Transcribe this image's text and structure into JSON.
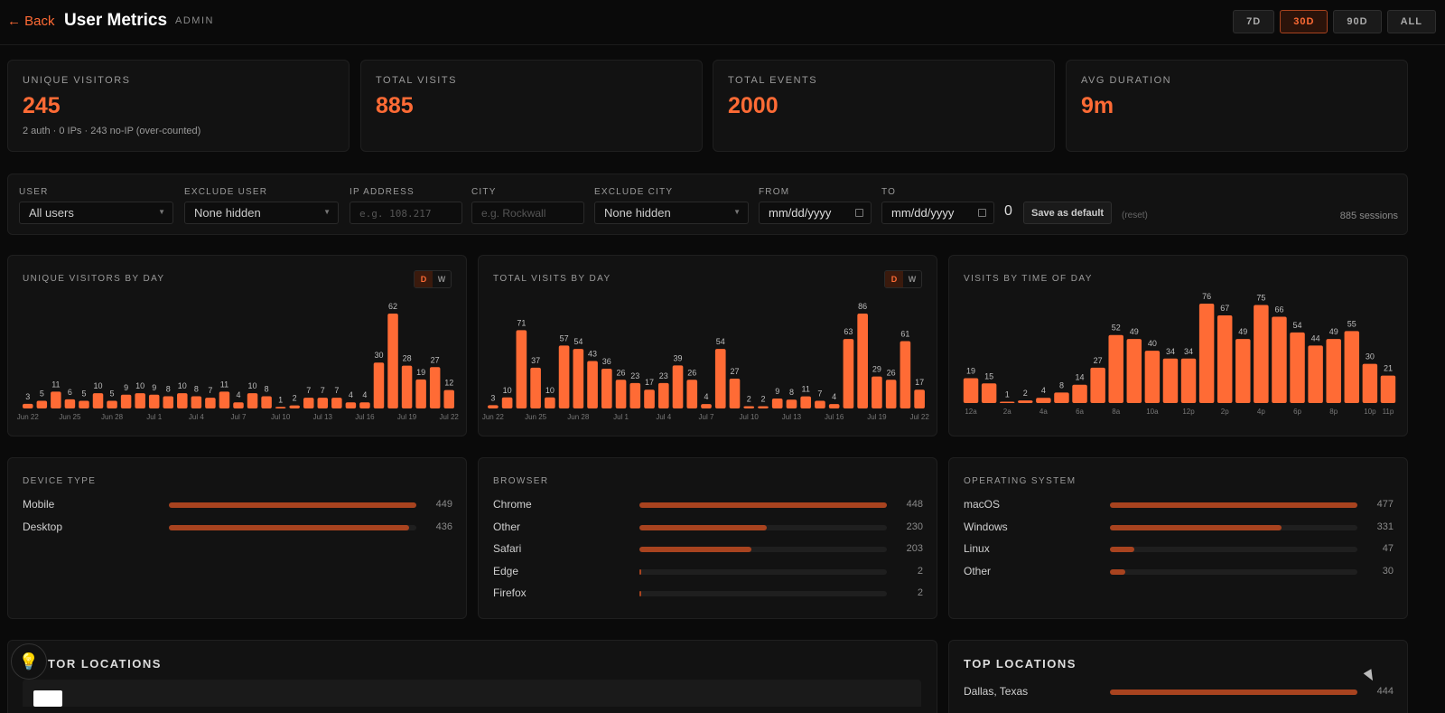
{
  "header": {
    "back_label": "← Back",
    "title": "User Metrics",
    "role": "ADMIN",
    "ranges": [
      "7D",
      "30D",
      "90D",
      "ALL"
    ],
    "active_range": "30D"
  },
  "kpis": [
    {
      "label": "UNIQUE VISITORS",
      "value": "245",
      "sub": "2 auth · 0 IPs · 243 no-IP (over-counted)"
    },
    {
      "label": "TOTAL VISITS",
      "value": "885",
      "sub": ""
    },
    {
      "label": "TOTAL EVENTS",
      "value": "2000",
      "sub": ""
    },
    {
      "label": "AVG DURATION",
      "value": "9m",
      "sub": ""
    }
  ],
  "filters": {
    "user_label": "USER",
    "user_value": "All users",
    "exclude_user_label": "EXCLUDE USER",
    "exclude_user_value": "None hidden",
    "ip_label": "IP ADDRESS",
    "ip_placeholder": "e.g. 108.217",
    "city_label": "CITY",
    "city_placeholder": "e.g. Rockwall",
    "exclude_city_label": "EXCLUDE CITY",
    "exclude_city_value": "None hidden",
    "from_label": "FROM",
    "from_value": "mm/dd/yyyy",
    "to_label": "TO",
    "to_value": "mm/dd/yyyy",
    "zero": "0",
    "save_label": "Save as default",
    "reset_label": "(reset)",
    "sessions_label": "885 sessions"
  },
  "toggle": {
    "d": "D",
    "w": "W"
  },
  "chart_data": [
    {
      "type": "bar",
      "title": "UNIQUE VISITORS BY DAY",
      "values": [
        3,
        5,
        11,
        6,
        5,
        10,
        5,
        9,
        10,
        9,
        8,
        10,
        8,
        7,
        11,
        4,
        10,
        8,
        1,
        2,
        7,
        7,
        7,
        4,
        4,
        30,
        62,
        28,
        19,
        27,
        12
      ],
      "tick_labels": [
        "Jun 22",
        "Jun 25",
        "Jun 28",
        "Jul 1",
        "Jul 4",
        "Jul 7",
        "Jul 10",
        "Jul 13",
        "Jul 16",
        "Jul 19",
        "Jul 22"
      ],
      "tick_indices": [
        0,
        3,
        6,
        9,
        12,
        15,
        18,
        21,
        24,
        27,
        30
      ]
    },
    {
      "type": "bar",
      "title": "TOTAL VISITS BY DAY",
      "values": [
        3,
        10,
        71,
        37,
        10,
        57,
        54,
        43,
        36,
        26,
        23,
        17,
        23,
        39,
        26,
        4,
        54,
        27,
        2,
        2,
        9,
        8,
        11,
        7,
        4,
        63,
        86,
        29,
        26,
        61,
        17
      ],
      "tick_labels": [
        "Jun 22",
        "Jun 25",
        "Jun 28",
        "Jul 1",
        "Jul 4",
        "Jul 7",
        "Jul 10",
        "Jul 13",
        "Jul 16",
        "Jul 19",
        "Jul 22"
      ],
      "tick_indices": [
        0,
        3,
        6,
        9,
        12,
        15,
        18,
        21,
        24,
        27,
        30
      ]
    },
    {
      "type": "bar",
      "title": "VISITS BY TIME OF DAY",
      "values": [
        19,
        15,
        1,
        2,
        4,
        8,
        14,
        27,
        52,
        49,
        40,
        34,
        34,
        76,
        67,
        49,
        75,
        66,
        54,
        44,
        49,
        55,
        30,
        21
      ],
      "tick_labels": [
        "12a",
        "2a",
        "4a",
        "6a",
        "8a",
        "10a",
        "12p",
        "2p",
        "4p",
        "6p",
        "8p",
        "10p",
        "11p"
      ],
      "tick_indices": [
        0,
        2,
        4,
        6,
        8,
        10,
        12,
        14,
        16,
        18,
        20,
        22,
        23
      ]
    }
  ],
  "device": {
    "title": "DEVICE TYPE",
    "rows": [
      {
        "label": "Mobile",
        "value": 449
      },
      {
        "label": "Desktop",
        "value": 436
      }
    ]
  },
  "browser": {
    "title": "BROWSER",
    "rows": [
      {
        "label": "Chrome",
        "value": 448
      },
      {
        "label": "Other",
        "value": 230
      },
      {
        "label": "Safari",
        "value": 203
      },
      {
        "label": "Edge",
        "value": 2
      },
      {
        "label": "Firefox",
        "value": 2
      }
    ]
  },
  "os": {
    "title": "OPERATING SYSTEM",
    "rows": [
      {
        "label": "macOS",
        "value": 477
      },
      {
        "label": "Windows",
        "value": 331
      },
      {
        "label": "Linux",
        "value": 47
      },
      {
        "label": "Other",
        "value": 30
      }
    ]
  },
  "visitor_locations": {
    "title": "TOR LOCATIONS"
  },
  "top_locations": {
    "title": "TOP LOCATIONS",
    "rows": [
      {
        "label": "Dallas, Texas",
        "value": 444
      }
    ]
  },
  "icons": {
    "bulb": "lightbulb-icon"
  }
}
